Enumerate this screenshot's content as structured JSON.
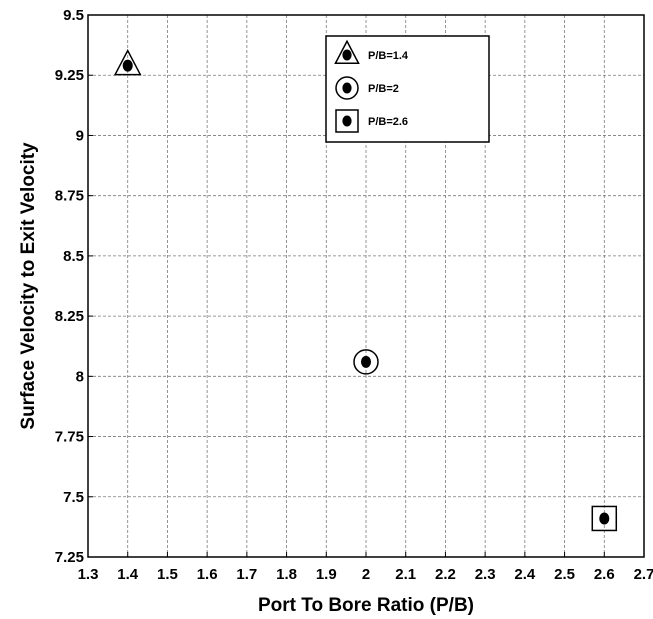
{
  "chart_data": {
    "type": "scatter",
    "xlabel": "Port To Bore Ratio (P/B)",
    "ylabel": "Surface Velocity to Exit Velocity",
    "xlim": [
      1.3,
      2.7
    ],
    "ylim": [
      7.25,
      9.5
    ],
    "x_ticks": [
      "1.3",
      "1.4",
      "1.5",
      "1.6",
      "1.7",
      "1.8",
      "1.9",
      "2",
      "2.1",
      "2.2",
      "2.3",
      "2.4",
      "2.5",
      "2.6",
      "2.7"
    ],
    "y_ticks": [
      "7.25",
      "7.5",
      "7.75",
      "8",
      "8.25",
      "8.5",
      "8.75",
      "9",
      "9.25",
      "9.5"
    ],
    "grid": true,
    "legend_position": "top-right",
    "series": [
      {
        "name": "P/B=1.4",
        "marker": "triangle",
        "x": 1.4,
        "y": 9.29
      },
      {
        "name": "P/B=2",
        "marker": "circle",
        "x": 2.0,
        "y": 8.06
      },
      {
        "name": "P/B=2.6",
        "marker": "square",
        "x": 2.6,
        "y": 7.41
      }
    ],
    "colors": {
      "marker": "#000000",
      "grid": "#7a7a7a",
      "background": "#ffffff"
    }
  }
}
